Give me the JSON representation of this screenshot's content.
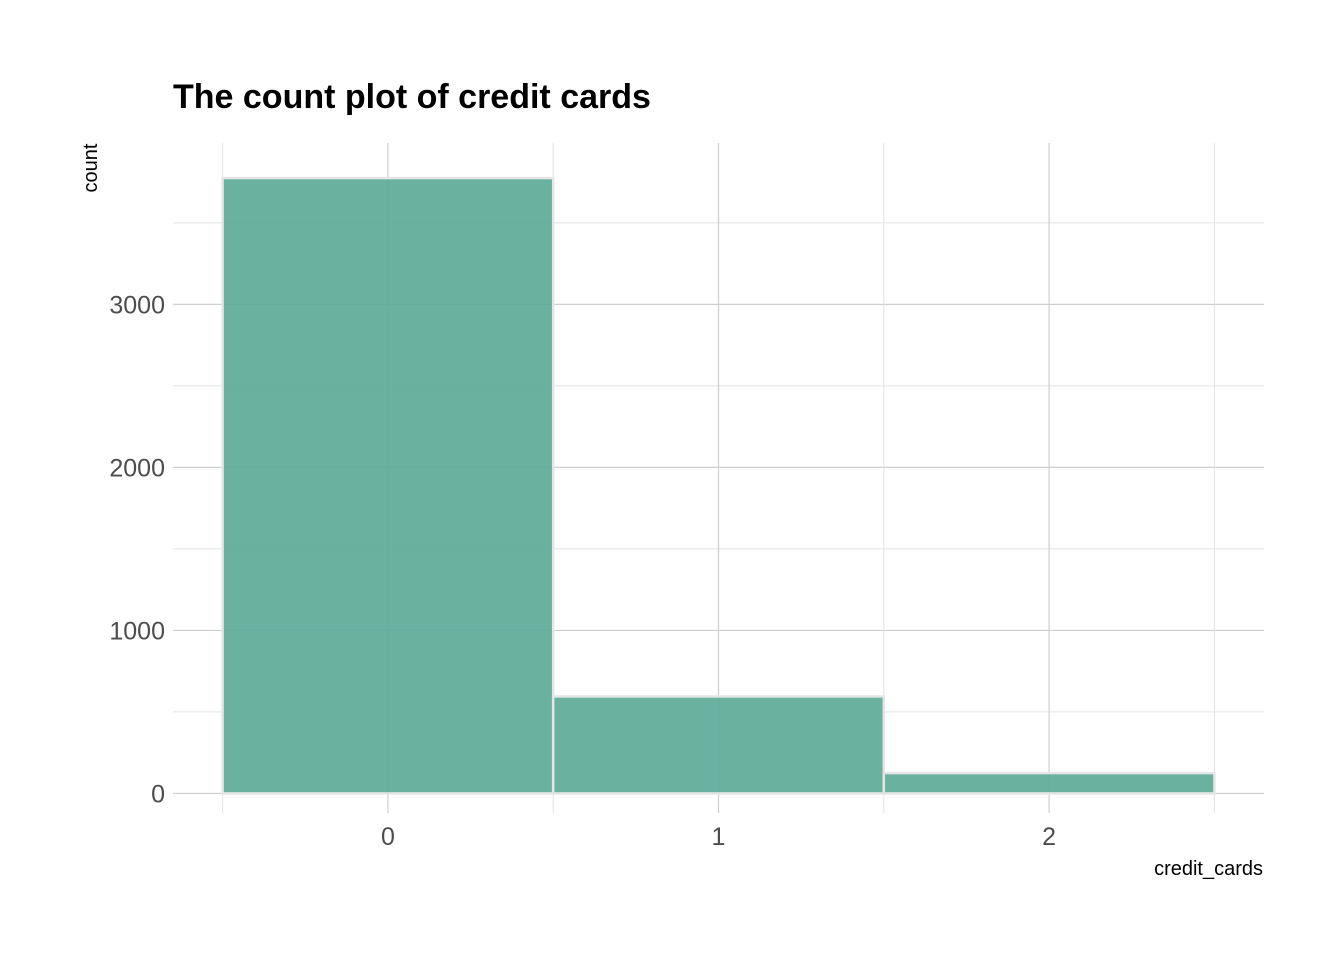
{
  "chart_data": {
    "type": "bar",
    "title": "The count plot of credit cards",
    "xlabel": "credit_cards",
    "ylabel": "count",
    "categories": [
      "0",
      "1",
      "2"
    ],
    "x": [
      0,
      1,
      2
    ],
    "values": [
      3775,
      595,
      125
    ],
    "ylim": [
      -120,
      3990
    ],
    "xlim": [
      -0.65,
      2.65
    ],
    "y_ticks": [
      0,
      1000,
      2000,
      3000
    ],
    "y_tick_labels": [
      "0",
      "1000",
      "2000",
      "3000"
    ],
    "x_tick_labels": [
      "0",
      "1",
      "2"
    ],
    "bar_color": "#5ba896",
    "bar_edge_color": "#e5e5e5",
    "grid": true,
    "legend": "none"
  }
}
